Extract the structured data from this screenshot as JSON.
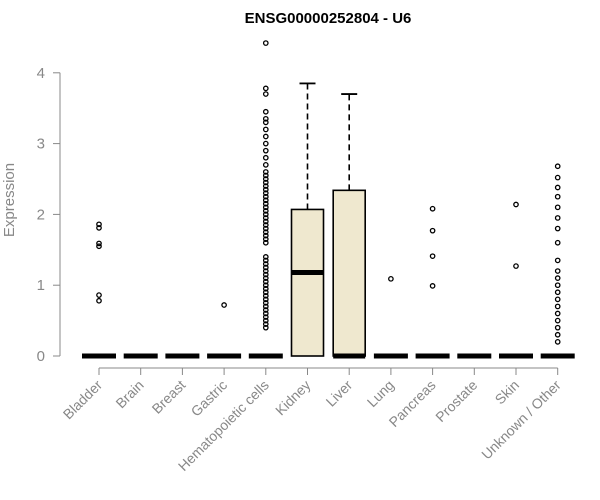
{
  "chart_data": {
    "type": "box",
    "title": "ENSG00000252804 - U6",
    "ylabel": "Expression",
    "xlabel": "",
    "ylim": [
      0,
      4.3
    ],
    "yticks": [
      0,
      1,
      2,
      3,
      4
    ],
    "box_fill": "#efe8cf",
    "categories": [
      "Bladder",
      "Brain",
      "Breast",
      "Gastric",
      "Hematopoietic cells",
      "Kidney",
      "Liver",
      "Lung",
      "Pancreas",
      "Prostate",
      "Skin",
      "Unknown / Other"
    ],
    "groups": [
      {
        "name": "Bladder",
        "q1": 0,
        "median": 0,
        "q3": 0,
        "whisker_low": 0,
        "whisker_high": 0,
        "outliers": [
          0.78,
          0.86,
          1.55,
          1.59,
          1.81,
          1.86
        ]
      },
      {
        "name": "Brain",
        "q1": 0,
        "median": 0,
        "q3": 0,
        "whisker_low": 0,
        "whisker_high": 0,
        "outliers": []
      },
      {
        "name": "Breast",
        "q1": 0,
        "median": 0,
        "q3": 0,
        "whisker_low": 0,
        "whisker_high": 0,
        "outliers": []
      },
      {
        "name": "Gastric",
        "q1": 0,
        "median": 0,
        "q3": 0,
        "whisker_low": 0,
        "whisker_high": 0,
        "outliers": [
          0.72
        ]
      },
      {
        "name": "Hematopoietic cells",
        "q1": 0,
        "median": 0,
        "q3": 0,
        "whisker_low": 0,
        "whisker_high": 0,
        "outliers": [
          0.4,
          0.45,
          0.5,
          0.55,
          0.6,
          0.65,
          0.7,
          0.75,
          0.8,
          0.85,
          0.9,
          0.95,
          1.0,
          1.05,
          1.1,
          1.15,
          1.2,
          1.25,
          1.3,
          1.35,
          1.4,
          1.6,
          1.65,
          1.7,
          1.75,
          1.8,
          1.85,
          1.9,
          1.95,
          2.0,
          2.05,
          2.1,
          2.15,
          2.2,
          2.25,
          2.3,
          2.35,
          2.4,
          2.45,
          2.5,
          2.55,
          2.6,
          2.7,
          2.8,
          2.9,
          3.0,
          3.1,
          3.2,
          3.3,
          3.35,
          3.45,
          3.7,
          3.78,
          4.42
        ]
      },
      {
        "name": "Kidney",
        "q1": 0,
        "median": 1.18,
        "q3": 2.07,
        "whisker_low": 0,
        "whisker_high": 3.85,
        "outliers": []
      },
      {
        "name": "Liver",
        "q1": 0,
        "median": 0,
        "q3": 2.34,
        "whisker_low": 0,
        "whisker_high": 3.7,
        "outliers": []
      },
      {
        "name": "Lung",
        "q1": 0,
        "median": 0,
        "q3": 0,
        "whisker_low": 0,
        "whisker_high": 0,
        "outliers": [
          1.09
        ]
      },
      {
        "name": "Pancreas",
        "q1": 0,
        "median": 0,
        "q3": 0,
        "whisker_low": 0,
        "whisker_high": 0,
        "outliers": [
          0.99,
          1.41,
          1.77,
          2.08
        ]
      },
      {
        "name": "Prostate",
        "q1": 0,
        "median": 0,
        "q3": 0,
        "whisker_low": 0,
        "whisker_high": 0,
        "outliers": []
      },
      {
        "name": "Skin",
        "q1": 0,
        "median": 0,
        "q3": 0,
        "whisker_low": 0,
        "whisker_high": 0,
        "outliers": [
          1.27,
          2.14
        ]
      },
      {
        "name": "Unknown / Other",
        "q1": 0,
        "median": 0,
        "q3": 0,
        "whisker_low": 0,
        "whisker_high": 0,
        "outliers": [
          0.2,
          0.3,
          0.4,
          0.5,
          0.6,
          0.7,
          0.8,
          0.9,
          1.0,
          1.1,
          1.2,
          1.35,
          1.6,
          1.8,
          1.95,
          2.1,
          2.25,
          2.38,
          2.52,
          2.68
        ]
      }
    ]
  }
}
